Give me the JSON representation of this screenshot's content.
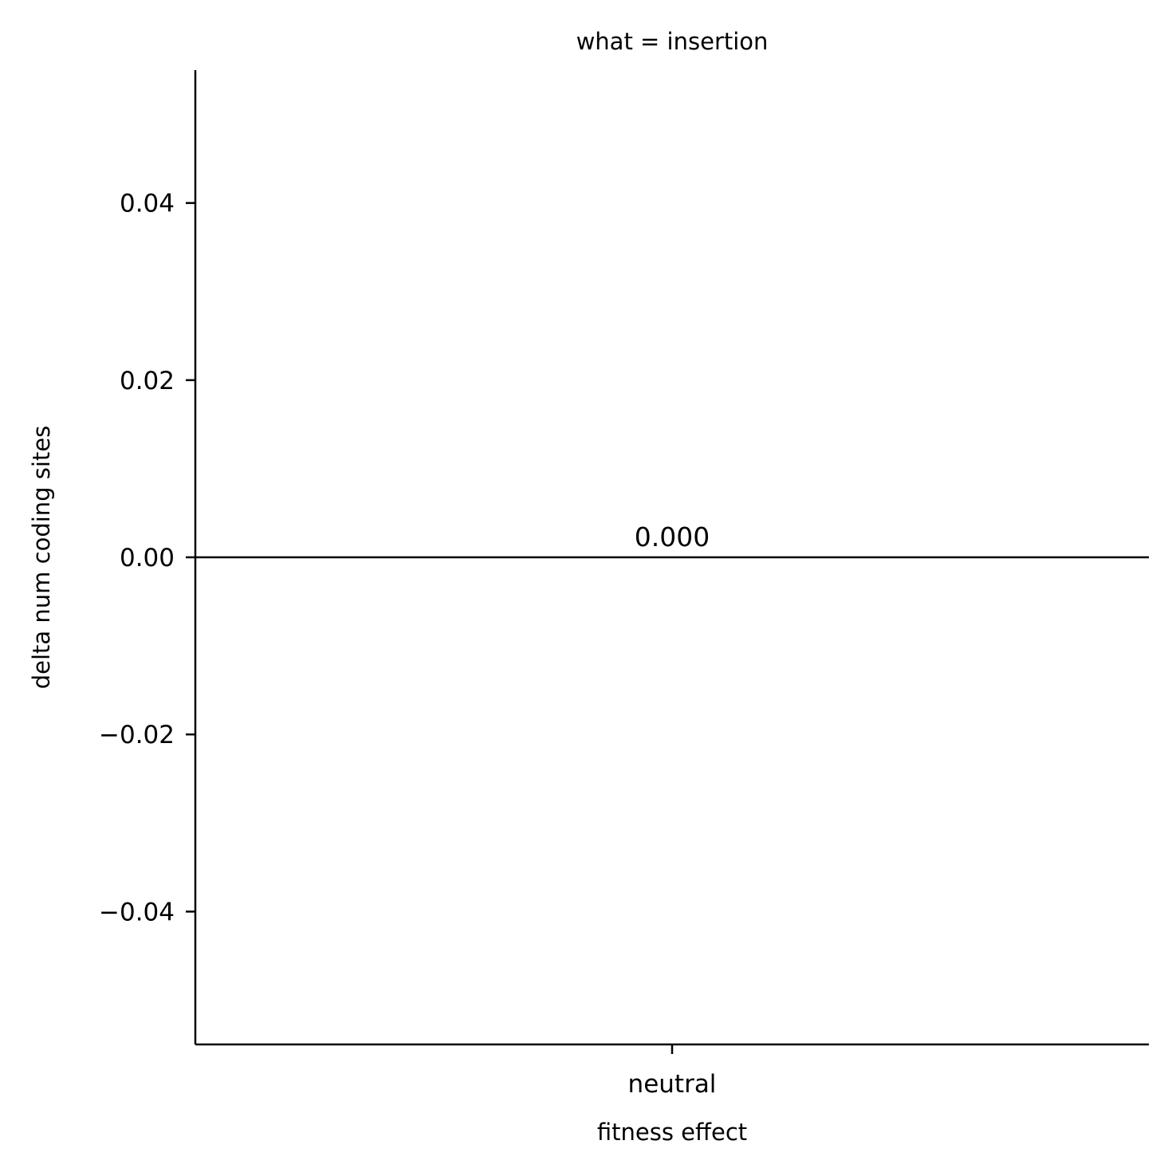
{
  "chart_data": {
    "type": "bar",
    "title": "what = insertion",
    "xlabel": "fitness effect",
    "ylabel": "delta num coding sites",
    "categories": [
      "neutral"
    ],
    "values": [
      0.0
    ],
    "data_labels": [
      "0.000"
    ],
    "ylim": [
      -0.055,
      0.055
    ],
    "yticks": [
      -0.04,
      -0.02,
      0.0,
      0.02,
      0.04
    ],
    "ytick_labels": [
      "−0.04",
      "−0.02",
      "0.00",
      "0.02",
      "0.04"
    ],
    "grid": false,
    "legend": "none",
    "spines": [
      "left",
      "bottom"
    ],
    "colors": {
      "axis": "#000000",
      "text": "#000000",
      "background": "#ffffff"
    }
  }
}
